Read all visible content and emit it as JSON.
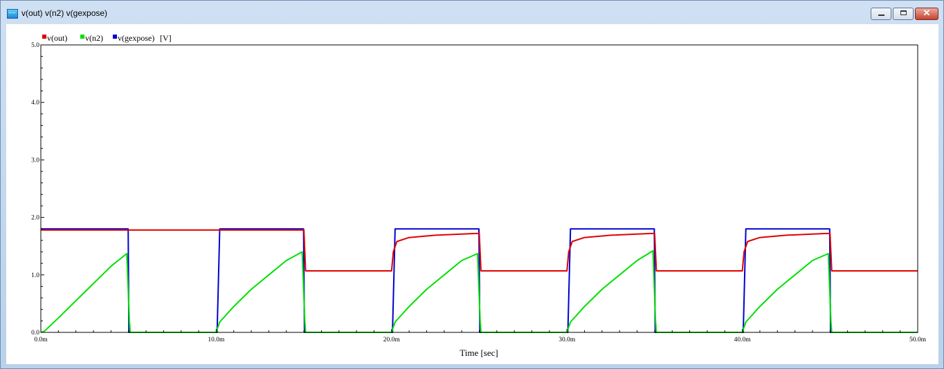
{
  "window": {
    "title": "v(out) v(n2) v(gexpose)"
  },
  "chart_data": {
    "type": "line",
    "legend": [
      "v(out)",
      "v(n2)",
      "v(gexpose)"
    ],
    "yunit": "[V]",
    "xlabel": "Time [sec]",
    "xlim": [
      0,
      50
    ],
    "ylim": [
      0,
      5
    ],
    "xticks": [
      "0.0m",
      "10.0m",
      "20.0m",
      "30.0m",
      "40.0m",
      "50.0m"
    ],
    "yticks": [
      "0.0",
      "1.0",
      "2.0",
      "3.0",
      "4.0",
      "5.0"
    ],
    "colors": {
      "v(out)": "#e00000",
      "v(n2)": "#00e000",
      "v(gexpose)": "#0000d0"
    },
    "series": [
      {
        "name": "v(gexpose)",
        "x": [
          0,
          4.98,
          5.02,
          10.05,
          10.2,
          14.98,
          15.03,
          20.05,
          20.2,
          24.98,
          25.03,
          30.05,
          30.2,
          34.98,
          35.03,
          40.05,
          40.2,
          44.98,
          45.03,
          50
        ],
        "y": [
          1.8,
          1.8,
          0,
          0,
          1.8,
          1.8,
          0,
          0,
          1.8,
          1.8,
          0,
          0,
          1.8,
          1.8,
          0,
          0,
          1.8,
          1.8,
          0,
          0
        ]
      },
      {
        "name": "v(out)",
        "x": [
          0,
          15.0,
          15.1,
          20.0,
          20.1,
          20.3,
          21.0,
          22.5,
          24.8,
          25.0,
          25.1,
          30.0,
          30.1,
          30.3,
          31.0,
          32.5,
          34.8,
          35.0,
          35.1,
          40.0,
          40.1,
          40.3,
          41.0,
          42.5,
          44.8,
          45.0,
          45.1,
          50
        ],
        "y": [
          1.78,
          1.78,
          1.07,
          1.07,
          1.4,
          1.58,
          1.65,
          1.69,
          1.72,
          1.72,
          1.07,
          1.07,
          1.4,
          1.58,
          1.65,
          1.69,
          1.72,
          1.72,
          1.07,
          1.07,
          1.4,
          1.58,
          1.65,
          1.69,
          1.72,
          1.72,
          1.07,
          1.07
        ]
      },
      {
        "name": "v(n2)",
        "x": [
          0,
          0.2,
          1.0,
          2.0,
          3.0,
          4.0,
          4.9,
          5.05,
          5.1,
          10.0,
          10.05,
          10.2,
          11.0,
          12.0,
          13.0,
          14.0,
          14.9,
          15.05,
          15.1,
          20.0,
          20.05,
          20.2,
          21.0,
          22.0,
          23.0,
          24.0,
          24.9,
          25.05,
          25.1,
          30.0,
          30.05,
          30.2,
          31.0,
          32.0,
          33.0,
          34.0,
          34.9,
          35.05,
          35.1,
          40.0,
          40.05,
          40.2,
          41.0,
          42.0,
          43.0,
          44.0,
          44.9,
          45.05,
          45.1,
          50
        ],
        "y": [
          0,
          0.02,
          0.25,
          0.55,
          0.85,
          1.15,
          1.37,
          0.2,
          0,
          0,
          0.05,
          0.18,
          0.45,
          0.75,
          1.0,
          1.25,
          1.4,
          0.2,
          0,
          0,
          0.05,
          0.18,
          0.45,
          0.75,
          1.0,
          1.25,
          1.37,
          0.2,
          0,
          0,
          0.05,
          0.18,
          0.45,
          0.75,
          1.0,
          1.25,
          1.42,
          0.2,
          0,
          0,
          0.05,
          0.18,
          0.45,
          0.75,
          1.0,
          1.25,
          1.37,
          0.2,
          0,
          0
        ]
      }
    ]
  }
}
